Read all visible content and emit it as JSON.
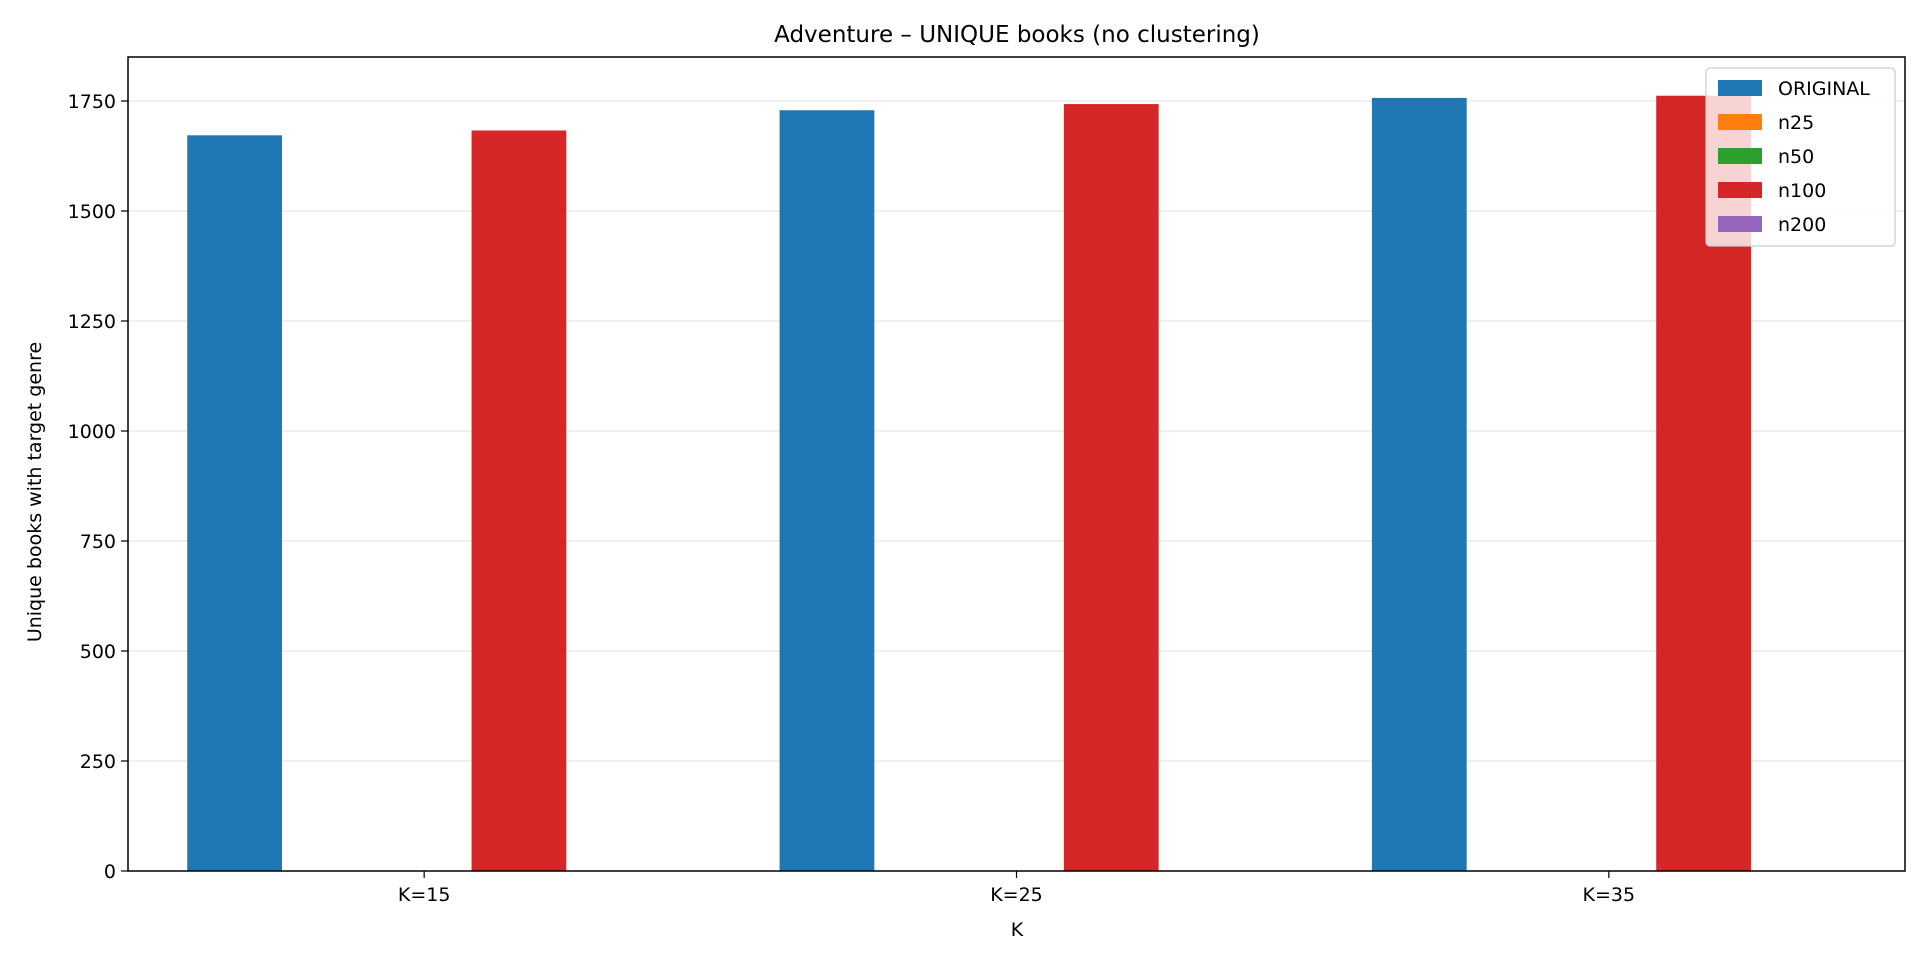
{
  "chart_data": {
    "type": "bar",
    "title": "Adventure – UNIQUE books (no clustering)",
    "xlabel": "K",
    "ylabel": "Unique books with target genre",
    "categories": [
      "K=15",
      "K=25",
      "K=35"
    ],
    "ylim": [
      0,
      1850
    ],
    "yticks": [
      0,
      250,
      500,
      750,
      1000,
      1250,
      1500,
      1750
    ],
    "grid": "y",
    "legend_position": "top-right",
    "series": [
      {
        "name": "ORIGINAL",
        "color": "#1f77b4",
        "values": [
          1672,
          1729,
          1757
        ]
      },
      {
        "name": "n25",
        "color": "#ff7f0e",
        "values": [
          0,
          0,
          0
        ]
      },
      {
        "name": "n50",
        "color": "#2ca02c",
        "values": [
          0,
          0,
          0
        ]
      },
      {
        "name": "n100",
        "color": "#d62728",
        "values": [
          1683,
          1743,
          1762
        ]
      },
      {
        "name": "n200",
        "color": "#9467bd",
        "values": [
          0,
          0,
          0
        ]
      }
    ]
  }
}
